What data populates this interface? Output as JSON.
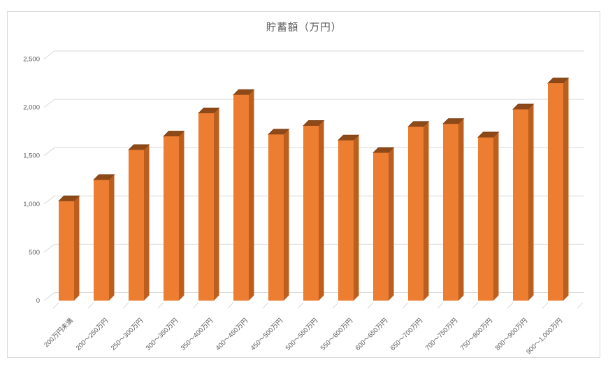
{
  "chart_data": {
    "type": "bar",
    "style": "3d-column",
    "title": "貯蓄額（万円）",
    "xlabel": "",
    "ylabel": "",
    "categories": [
      "200万円未満",
      "200～250万円",
      "250～300万円",
      "300～350万円",
      "350～400万円",
      "400～450万円",
      "450～500万円",
      "500～550万円",
      "550～600万円",
      "600～650万円",
      "650～700万円",
      "700～750万円",
      "750～800万円",
      "800～900万円",
      "900～1,000万円"
    ],
    "values": [
      1030,
      1250,
      1560,
      1700,
      1940,
      2130,
      1720,
      1810,
      1660,
      1530,
      1800,
      1830,
      1690,
      1980,
      2250
    ],
    "ylim": [
      0,
      2500
    ],
    "ytick_interval": 500,
    "ytick_labels": [
      "0",
      "500",
      "1,000",
      "1,500",
      "2,000",
      "2,500"
    ],
    "grid": true,
    "legend": "none",
    "colors": {
      "bar_front": "#ED7D31",
      "bar_side": "#BC5F1E",
      "bar_top": "#8D4917",
      "bar_top_edge": "#7A3D12",
      "gridline": "#D9D9D9",
      "axis_text": "#595959",
      "title_text": "#595959",
      "frame_border": "#D9D9D9",
      "background": "#FFFFFF"
    }
  }
}
